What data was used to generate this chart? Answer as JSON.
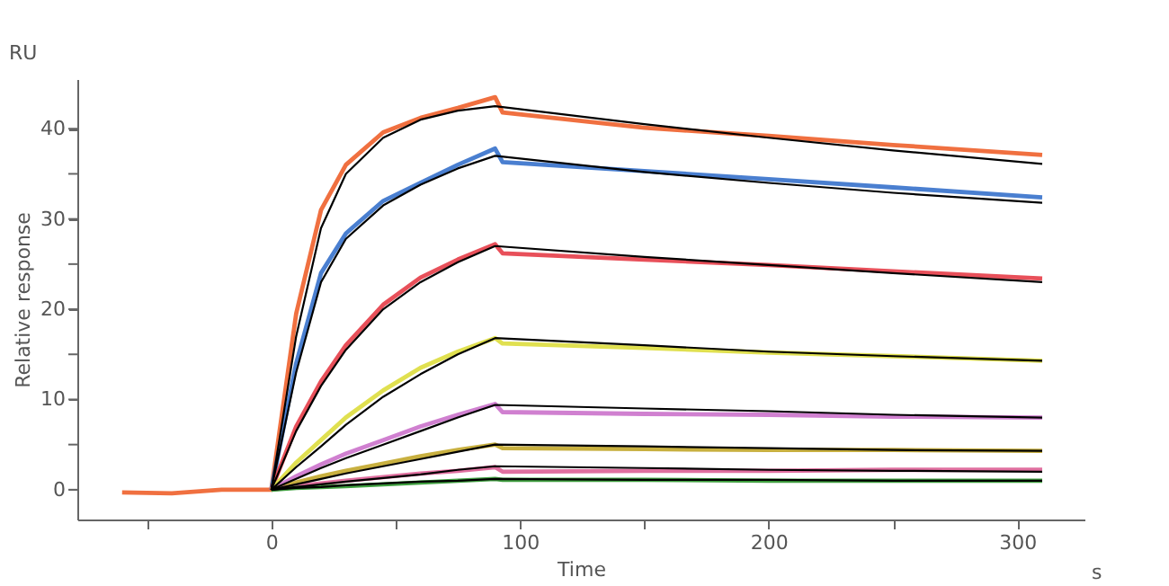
{
  "chart_data": {
    "type": "line",
    "xlabel": "Time",
    "ylabel": "Relative response",
    "annotations": [
      "RU",
      "s"
    ],
    "xlim": [
      -78,
      327
    ],
    "ylim": [
      -3.3,
      45.5
    ],
    "xticks": [
      {
        "value": -50,
        "label": null
      },
      0,
      {
        "value": 50,
        "label": null
      },
      100,
      {
        "value": 150,
        "label": null
      },
      200,
      {
        "value": 250,
        "label": null
      },
      300
    ],
    "yticks": [
      0,
      {
        "value": 5,
        "label": null
      },
      10,
      {
        "value": 15,
        "label": null
      },
      20,
      {
        "value": 25,
        "label": null
      },
      30,
      {
        "value": 35,
        "label": null
      },
      40
    ],
    "grid": false,
    "marker": "none",
    "line_style": "solid",
    "series": [
      {
        "color": "#f07040",
        "x": [
          -60,
          -40,
          -20,
          0,
          10,
          20,
          30,
          45,
          60,
          75,
          90,
          93,
          150,
          200,
          250,
          310
        ],
        "values": [
          -0.3,
          -0.4,
          0,
          0,
          19.5,
          31,
          36,
          39.6,
          41.2,
          42.3,
          43.5,
          41.8,
          40.1,
          39.2,
          38.2,
          37.1
        ]
      },
      {
        "color": "#4a7fd0",
        "x": [
          0,
          10,
          20,
          30,
          45,
          60,
          75,
          90,
          93,
          150,
          200,
          250,
          310
        ],
        "values": [
          0,
          14,
          24,
          28.4,
          32,
          34,
          36,
          37.8,
          36.3,
          35.3,
          34.4,
          33.5,
          32.4
        ]
      },
      {
        "color": "#e8505a",
        "x": [
          0,
          10,
          20,
          30,
          45,
          60,
          75,
          90,
          93,
          150,
          200,
          250,
          310
        ],
        "values": [
          0,
          7,
          12,
          16,
          20.5,
          23.5,
          25.5,
          27.2,
          26.2,
          25.5,
          24.9,
          24.2,
          23.4
        ]
      },
      {
        "color": "#e0e050",
        "x": [
          0,
          10,
          20,
          30,
          45,
          60,
          75,
          90,
          93,
          150,
          200,
          250,
          310
        ],
        "values": [
          0,
          3,
          5.5,
          8,
          11,
          13.5,
          15.3,
          16.8,
          16.2,
          15.7,
          15.2,
          14.8,
          14.3
        ]
      },
      {
        "color": "#d080d0",
        "x": [
          0,
          10,
          20,
          30,
          45,
          60,
          75,
          90,
          93,
          150,
          200,
          250,
          310
        ],
        "values": [
          0,
          1.5,
          2.8,
          4,
          5.5,
          7,
          8.3,
          9.5,
          8.6,
          8.4,
          8.3,
          8.1,
          8.0
        ]
      },
      {
        "color": "#c8b040",
        "x": [
          0,
          10,
          20,
          30,
          45,
          60,
          75,
          90,
          93,
          150,
          200,
          250,
          310
        ],
        "values": [
          0,
          0.8,
          1.5,
          2.1,
          2.9,
          3.7,
          4.4,
          5.0,
          4.6,
          4.5,
          4.4,
          4.4,
          4.3
        ]
      },
      {
        "color": "#e070a0",
        "x": [
          0,
          10,
          20,
          30,
          45,
          60,
          75,
          90,
          93,
          150,
          200,
          250,
          310
        ],
        "values": [
          0,
          0.4,
          0.7,
          1.0,
          1.4,
          1.8,
          2.1,
          2.5,
          2.0,
          2.1,
          2.1,
          2.2,
          2.2
        ]
      },
      {
        "color": "#40a040",
        "x": [
          0,
          10,
          20,
          30,
          45,
          60,
          75,
          90,
          93,
          150,
          200,
          250,
          310
        ],
        "values": [
          0,
          0.2,
          0.3,
          0.4,
          0.6,
          0.8,
          1.0,
          1.2,
          1.1,
          1.1,
          1.0,
          1.0,
          1.0
        ]
      },
      {
        "color": "#000000",
        "x": [
          0,
          10,
          20,
          30,
          45,
          60,
          75,
          90,
          150,
          200,
          250,
          310
        ],
        "values": [
          0,
          17,
          29,
          35,
          39,
          41,
          42,
          42.5,
          40.5,
          39,
          37.6,
          36.1
        ]
      },
      {
        "color": "#000000",
        "x": [
          0,
          10,
          20,
          30,
          45,
          60,
          75,
          90,
          150,
          200,
          250,
          310
        ],
        "values": [
          0,
          13,
          23,
          27.8,
          31.5,
          33.8,
          35.6,
          37.0,
          35.2,
          34,
          32.9,
          31.8
        ]
      },
      {
        "color": "#000000",
        "x": [
          0,
          10,
          20,
          30,
          45,
          60,
          75,
          90,
          150,
          200,
          250,
          310
        ],
        "values": [
          0,
          6.5,
          11.5,
          15.5,
          20,
          23,
          25.2,
          27.0,
          25.8,
          24.9,
          24,
          23.0
        ]
      },
      {
        "color": "#000000",
        "x": [
          0,
          10,
          20,
          30,
          45,
          60,
          75,
          90,
          150,
          200,
          250,
          310
        ],
        "values": [
          0,
          2.5,
          4.8,
          7.2,
          10.3,
          12.8,
          15,
          16.8,
          16,
          15.3,
          14.8,
          14.3
        ]
      },
      {
        "color": "#000000",
        "x": [
          0,
          10,
          20,
          30,
          45,
          60,
          75,
          90,
          150,
          200,
          250,
          310
        ],
        "values": [
          0,
          1.2,
          2.4,
          3.5,
          5,
          6.5,
          8,
          9.4,
          9,
          8.7,
          8.3,
          8.0
        ]
      },
      {
        "color": "#000000",
        "x": [
          0,
          10,
          20,
          30,
          45,
          60,
          75,
          90,
          150,
          200,
          250,
          310
        ],
        "values": [
          0,
          0.6,
          1.2,
          1.8,
          2.6,
          3.4,
          4.2,
          5.0,
          4.8,
          4.6,
          4.4,
          4.3
        ]
      },
      {
        "color": "#000000",
        "x": [
          0,
          10,
          20,
          30,
          45,
          60,
          75,
          90,
          150,
          200,
          250,
          310
        ],
        "values": [
          0,
          0.3,
          0.6,
          0.9,
          1.3,
          1.7,
          2.2,
          2.6,
          2.4,
          2.2,
          2.1,
          2.0
        ]
      },
      {
        "color": "#000000",
        "x": [
          0,
          10,
          20,
          30,
          45,
          60,
          75,
          90,
          150,
          200,
          250,
          310
        ],
        "values": [
          0,
          0.2,
          0.3,
          0.5,
          0.7,
          0.9,
          1.0,
          1.2,
          1.1,
          1.1,
          1.0,
          1.0
        ]
      }
    ]
  }
}
